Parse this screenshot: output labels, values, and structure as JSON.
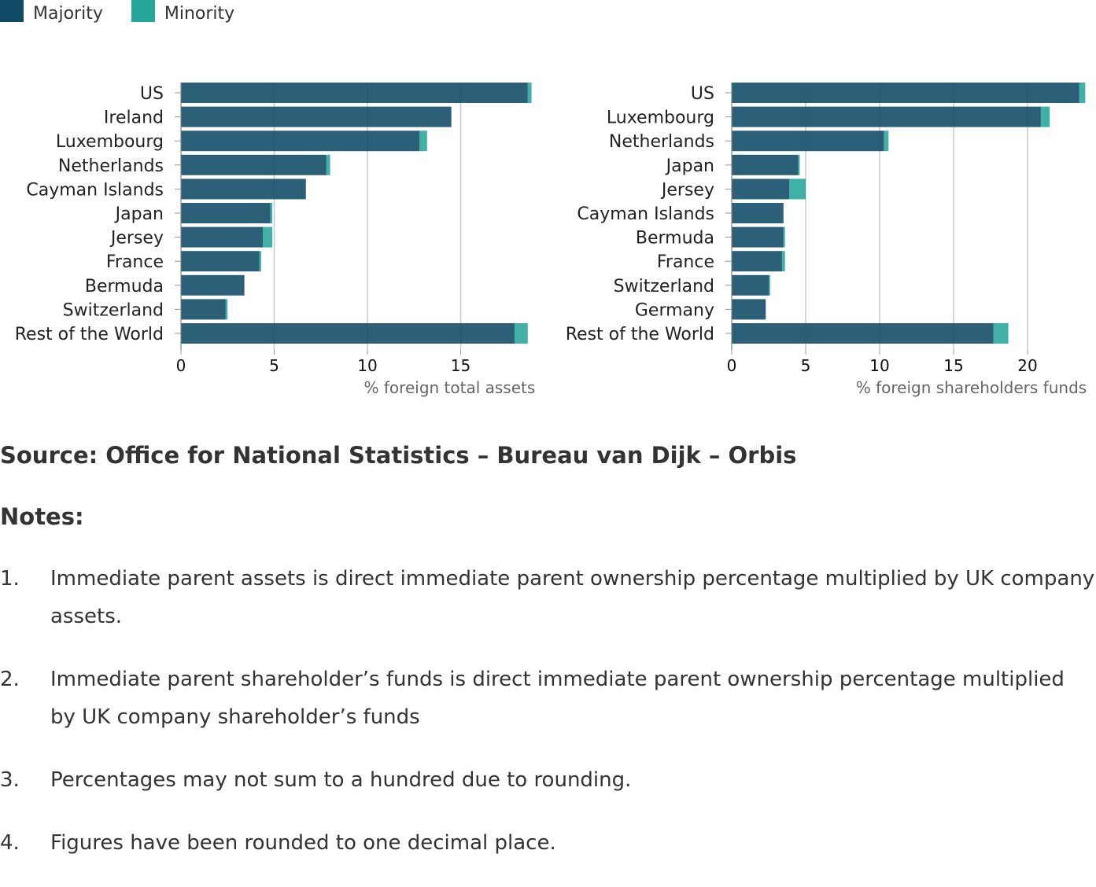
{
  "legend": {
    "items": [
      {
        "label": "Majority",
        "color": "#0f4a66"
      },
      {
        "label": "Minority",
        "color": "#26a69a"
      }
    ]
  },
  "chart_data": [
    {
      "type": "bar",
      "orientation": "horizontal",
      "stacked": true,
      "categories": [
        "US",
        "Ireland",
        "Luxembourg",
        "Netherlands",
        "Cayman Islands",
        "Japan",
        "Jersey",
        "France",
        "Bermuda",
        "Switzerland",
        "Rest of the World"
      ],
      "series": [
        {
          "name": "Majority",
          "values": [
            18.6,
            14.5,
            12.8,
            7.8,
            6.7,
            4.8,
            4.4,
            4.2,
            3.4,
            2.4,
            17.9
          ]
        },
        {
          "name": "Minority",
          "values": [
            0.2,
            0.0,
            0.4,
            0.2,
            0.0,
            0.1,
            0.5,
            0.1,
            0.0,
            0.1,
            0.7
          ]
        }
      ],
      "xticks": [
        0,
        5,
        10,
        15
      ],
      "xlim": [
        0,
        19
      ],
      "xlabel": "% foreign total assets",
      "grid": true
    },
    {
      "type": "bar",
      "orientation": "horizontal",
      "stacked": true,
      "categories": [
        "US",
        "Luxembourg",
        "Netherlands",
        "Japan",
        "Jersey",
        "Cayman Islands",
        "Bermuda",
        "France",
        "Switzerland",
        "Germany",
        "Rest of the World"
      ],
      "series": [
        {
          "name": "Majority",
          "values": [
            23.5,
            20.9,
            10.3,
            4.5,
            3.9,
            3.5,
            3.5,
            3.4,
            2.5,
            2.3,
            17.7
          ]
        },
        {
          "name": "Minority",
          "values": [
            0.4,
            0.6,
            0.3,
            0.1,
            1.1,
            0.0,
            0.1,
            0.2,
            0.1,
            0.0,
            1.0
          ]
        }
      ],
      "xticks": [
        0,
        5,
        10,
        15,
        20
      ],
      "xlim": [
        0,
        24
      ],
      "xlabel": "% foreign shareholders funds",
      "grid": true
    }
  ],
  "source": "Source: Office for National Statistics – Bureau van Dijk – Orbis",
  "notes_heading": "Notes:",
  "notes": [
    {
      "num": "1.",
      "text": "Immediate parent assets is direct immediate parent ownership percentage multiplied by UK company assets."
    },
    {
      "num": "2.",
      "text": "Immediate parent shareholder’s funds is direct immediate parent ownership percentage multiplied by UK company shareholder’s funds"
    },
    {
      "num": "3.",
      "text": "Percentages may not sum to a hundred due to rounding."
    },
    {
      "num": "4.",
      "text": "Figures have been rounded to one decimal place."
    }
  ]
}
